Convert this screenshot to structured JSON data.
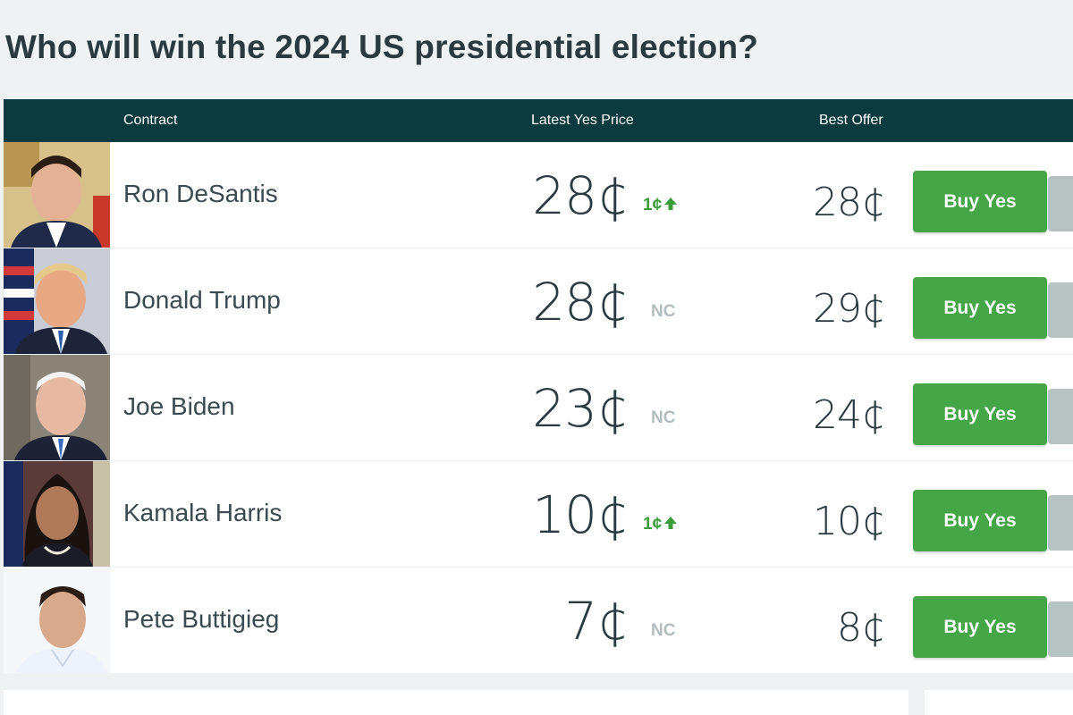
{
  "page": {
    "title": "Who will win the 2024 US presidential election?"
  },
  "table": {
    "headers": {
      "contract": "Contract",
      "latest_yes_price": "Latest Yes Price",
      "best_offer": "Best Offer"
    },
    "rows": [
      {
        "name": "Ron DeSantis",
        "price": "28¢",
        "change": "1¢",
        "change_type": "up",
        "offer": "28¢",
        "buy_label": "Buy Yes"
      },
      {
        "name": "Donald Trump",
        "price": "28¢",
        "change": "NC",
        "change_type": "nc",
        "offer": "29¢",
        "buy_label": "Buy Yes"
      },
      {
        "name": "Joe Biden",
        "price": "23¢",
        "change": "NC",
        "change_type": "nc",
        "offer": "24¢",
        "buy_label": "Buy Yes"
      },
      {
        "name": "Kamala Harris",
        "price": "10¢",
        "change": "1¢",
        "change_type": "up",
        "offer": "10¢",
        "buy_label": "Buy Yes"
      },
      {
        "name": "Pete Buttigieg",
        "price": "7¢",
        "change": "NC",
        "change_type": "nc",
        "offer": "8¢",
        "buy_label": "Buy Yes"
      }
    ]
  },
  "colors": {
    "header_bg": "#0b3a3f",
    "buy_green": "#45a648",
    "up_green": "#3a9d3a",
    "nc_gray": "#b3bcbf"
  },
  "icons": {
    "up_arrow": "arrow-up-icon"
  }
}
